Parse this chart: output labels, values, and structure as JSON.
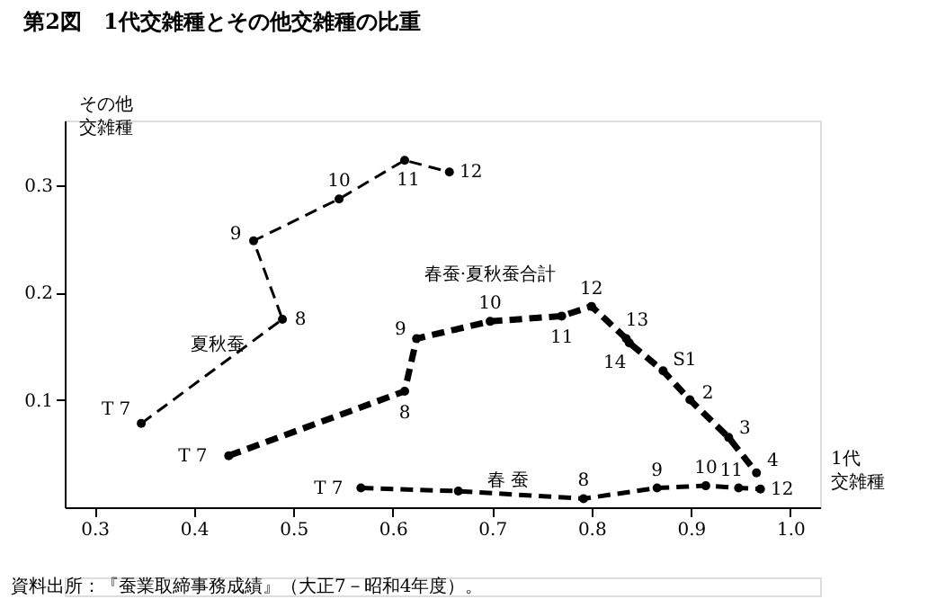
{
  "chart_data": {
    "type": "line",
    "title": "第2図　1代交雑種とその他交雑種の比重",
    "xlabel": "1代交雑種",
    "ylabel": "その他交雑種",
    "xlim": [
      0.27,
      1.03
    ],
    "ylim": [
      0,
      0.36
    ],
    "xticks": [
      0.3,
      0.4,
      0.5,
      0.6,
      0.7,
      0.8,
      0.9,
      {
        "value": 1.0,
        "label": "1.0"
      }
    ],
    "yticks": [
      0.1,
      0.2,
      0.3
    ],
    "marker": "circle",
    "line_style": "dashed",
    "grid": false,
    "series": [
      {
        "name": "夏秋蚕",
        "color": "#000000",
        "x": [
          0.347,
          0.489,
          0.46,
          0.546,
          0.612,
          0.657
        ],
        "values": [
          0.078,
          0.175,
          0.248,
          0.287,
          0.323,
          0.312
        ]
      },
      {
        "name": "春蚕·夏秋蚕合計",
        "color": "#000000",
        "x": [
          0.435,
          0.612,
          0.624,
          0.698,
          0.77,
          0.8,
          0.835,
          0.838,
          0.872,
          0.899,
          0.938,
          0.966
        ],
        "values": [
          0.048,
          0.108,
          0.157,
          0.173,
          0.178,
          0.187,
          0.157,
          0.153,
          0.127,
          0.1,
          0.065,
          0.032
        ]
      },
      {
        "name": "春 蚕",
        "color": "#000000",
        "x": [
          0.568,
          0.666,
          0.792,
          0.866,
          0.915,
          0.948,
          0.97
        ],
        "values": [
          0.018,
          0.015,
          0.008,
          0.018,
          0.02,
          0.018,
          0.017
        ]
      }
    ],
    "annotations": [
      {
        "text": "T 7",
        "x": 0.347,
        "y": 0.078
      },
      {
        "text": "8",
        "x": 0.489,
        "y": 0.175
      },
      {
        "text": "9",
        "x": 0.46,
        "y": 0.248
      },
      {
        "text": "10",
        "x": 0.546,
        "y": 0.287
      },
      {
        "text": "11",
        "x": 0.612,
        "y": 0.323
      },
      {
        "text": "12",
        "x": 0.657,
        "y": 0.312
      },
      {
        "text": "T 7",
        "x": 0.435,
        "y": 0.048
      },
      {
        "text": "8",
        "x": 0.612,
        "y": 0.108
      },
      {
        "text": "9",
        "x": 0.624,
        "y": 0.157
      },
      {
        "text": "10",
        "x": 0.698,
        "y": 0.173
      },
      {
        "text": "11",
        "x": 0.77,
        "y": 0.178
      },
      {
        "text": "12",
        "x": 0.8,
        "y": 0.187
      },
      {
        "text": "13",
        "x": 0.835,
        "y": 0.157
      },
      {
        "text": "14",
        "x": 0.838,
        "y": 0.153
      },
      {
        "text": "S1",
        "x": 0.872,
        "y": 0.127
      },
      {
        "text": "2",
        "x": 0.899,
        "y": 0.1
      },
      {
        "text": "3",
        "x": 0.938,
        "y": 0.065
      },
      {
        "text": "4",
        "x": 0.966,
        "y": 0.032
      },
      {
        "text": "T 7",
        "x": 0.568,
        "y": 0.018
      },
      {
        "text": "8",
        "x": 0.792,
        "y": 0.008
      },
      {
        "text": "9",
        "x": 0.866,
        "y": 0.018
      },
      {
        "text": "10",
        "x": 0.915,
        "y": 0.02
      },
      {
        "text": "11",
        "x": 0.948,
        "y": 0.018
      },
      {
        "text": "12",
        "x": 0.97,
        "y": 0.017
      },
      "資料出所：『蚕業取締事務成績』（大正7－昭和4年度）。"
    ]
  }
}
